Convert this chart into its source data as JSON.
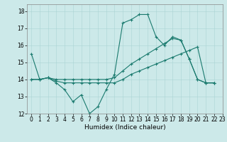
{
  "xlabel": "Humidex (Indice chaleur)",
  "ylabel": "",
  "bg_color": "#cce9e9",
  "line_color": "#1a7a6e",
  "xlim": [
    -0.5,
    23
  ],
  "ylim": [
    12,
    18.4
  ],
  "yticks": [
    12,
    13,
    14,
    15,
    16,
    17,
    18
  ],
  "xticks": [
    0,
    1,
    2,
    3,
    4,
    5,
    6,
    7,
    8,
    9,
    10,
    11,
    12,
    13,
    14,
    15,
    16,
    17,
    18,
    19,
    20,
    21,
    22,
    23
  ],
  "series": [
    [
      15.5,
      14.0,
      14.1,
      13.8,
      13.4,
      12.7,
      13.1,
      12.0,
      12.4,
      13.4,
      14.3,
      17.3,
      17.5,
      17.8,
      17.8,
      16.5,
      16.0,
      16.5,
      16.3,
      15.2,
      14.0,
      13.8,
      13.8
    ],
    [
      14.0,
      14.0,
      14.1,
      13.9,
      13.8,
      13.8,
      13.8,
      13.8,
      13.8,
      13.8,
      13.8,
      14.0,
      14.3,
      14.5,
      14.7,
      14.9,
      15.1,
      15.3,
      15.5,
      15.7,
      15.9,
      13.8,
      13.8
    ],
    [
      14.0,
      14.0,
      14.1,
      14.0,
      14.0,
      14.0,
      14.0,
      14.0,
      14.0,
      14.0,
      14.1,
      14.5,
      14.9,
      15.2,
      15.5,
      15.8,
      16.1,
      16.4,
      16.3,
      15.2,
      14.0,
      13.8,
      13.8
    ]
  ],
  "tick_fontsize": 5.5,
  "xlabel_fontsize": 6.5
}
